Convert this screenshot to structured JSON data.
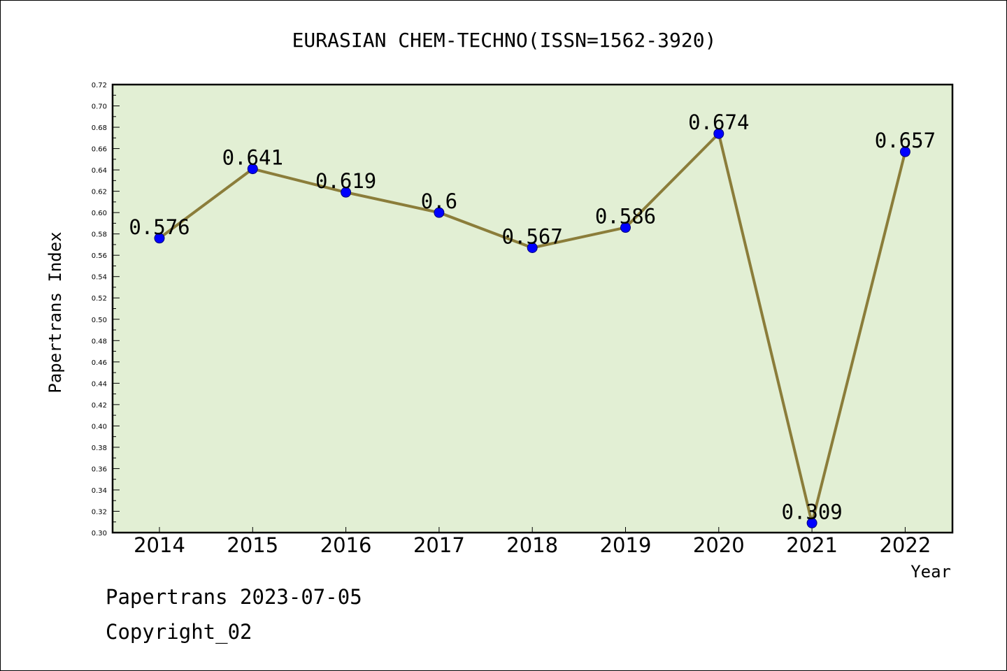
{
  "chart_data": {
    "type": "line",
    "title": "EURASIAN CHEM-TECHNO(ISSN=1562-3920)",
    "xlabel": "Year",
    "ylabel": "Papertrans Index",
    "categories": [
      "2014",
      "2015",
      "2016",
      "2017",
      "2018",
      "2019",
      "2020",
      "2021",
      "2022"
    ],
    "values": [
      0.576,
      0.641,
      0.619,
      0.6,
      0.567,
      0.586,
      0.674,
      0.309,
      0.657
    ],
    "data_labels": [
      "0.576",
      "0.641",
      "0.619",
      "0.6",
      "0.567",
      "0.586",
      "0.674",
      "0.309",
      "0.657"
    ],
    "ylim": [
      0.3,
      0.72
    ],
    "y_ticks": [
      "0.30",
      "0.32",
      "0.34",
      "0.36",
      "0.38",
      "0.40",
      "0.42",
      "0.44",
      "0.46",
      "0.48",
      "0.50",
      "0.52",
      "0.54",
      "0.56",
      "0.58",
      "0.60",
      "0.62",
      "0.64",
      "0.66",
      "0.68",
      "0.70",
      "0.72"
    ],
    "grid": false,
    "colors": {
      "plot_background": "#e2efd4",
      "line": "#8b7d3a",
      "marker": "#0000ff"
    }
  },
  "footer": {
    "line1": "Papertrans 2023-07-05",
    "line2": "Copyright_02"
  }
}
